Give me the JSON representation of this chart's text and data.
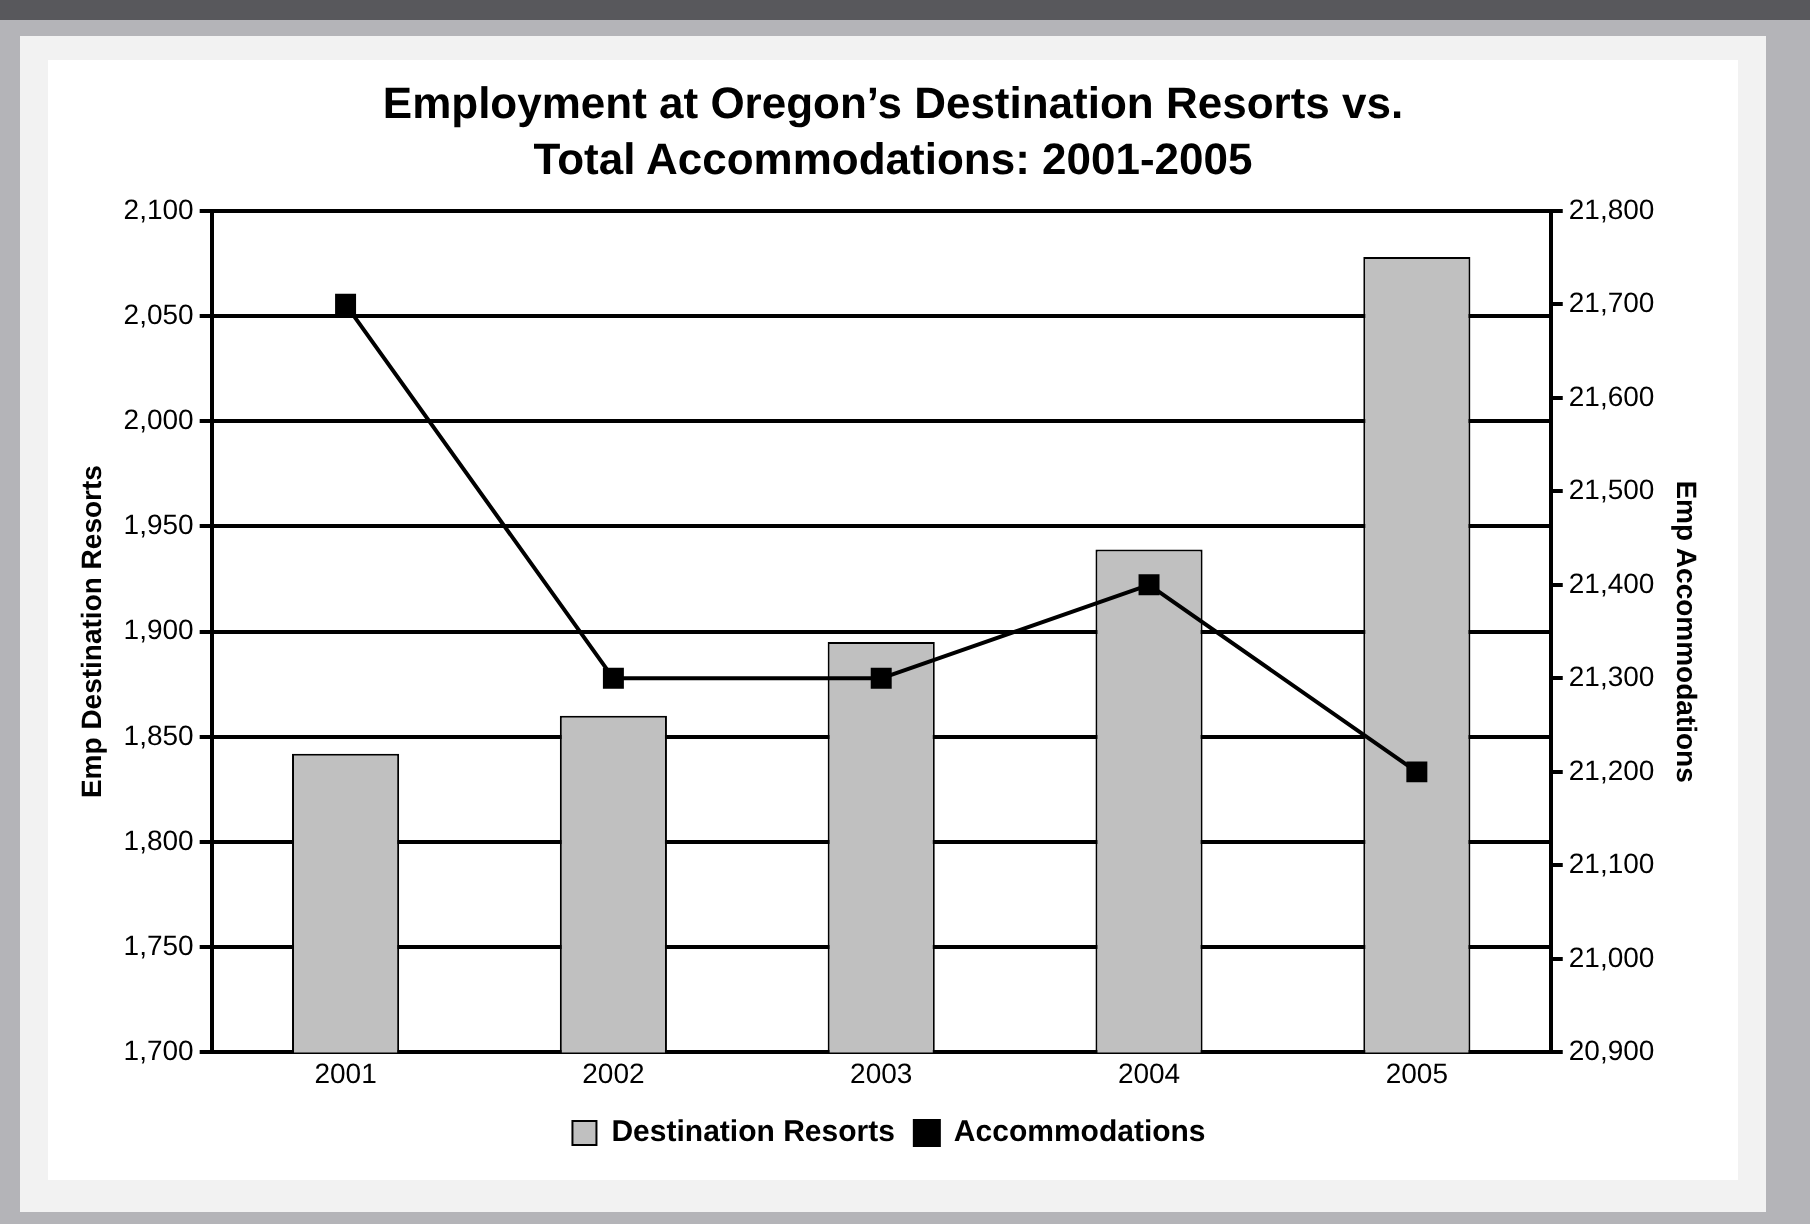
{
  "chart_data": {
    "type": "bar",
    "title": "Employment at Oregon’s Destination Resorts vs. Total Accommodations: 2001-2005",
    "ylabel": "Emp Destination Resorts",
    "y2label": "Emp Accommodations",
    "categories": [
      "2001",
      "2002",
      "2003",
      "2004",
      "2005"
    ],
    "series": [
      {
        "name": "Destination Resorts",
        "color": "#c0c0c0",
        "values": [
          1842,
          1860,
          1895,
          1939,
          2078
        ]
      },
      {
        "name": "Accommodations",
        "type": "line",
        "axis": "y2",
        "color": "#000000",
        "marker": "square",
        "line_style": "solid",
        "values": [
          21700,
          21300,
          21300,
          21400,
          21200
        ]
      }
    ],
    "ylim": [
      1700,
      2100
    ],
    "yticks": [
      {
        "value": 1700,
        "label": "1,700"
      },
      {
        "value": 1750,
        "label": "1,750"
      },
      {
        "value": 1800,
        "label": "1,800"
      },
      {
        "value": 1850,
        "label": "1,850"
      },
      {
        "value": 1900,
        "label": "1,900"
      },
      {
        "value": 1950,
        "label": "1,950"
      },
      {
        "value": 2000,
        "label": "2,000"
      },
      {
        "value": 2050,
        "label": "2,050"
      },
      {
        "value": 2100,
        "label": "2,100"
      }
    ],
    "y2lim": [
      20900,
      21800
    ],
    "y2ticks": [
      {
        "value": 20900,
        "label": "20,900"
      },
      {
        "value": 21000,
        "label": "21,000"
      },
      {
        "value": 21100,
        "label": "21,100"
      },
      {
        "value": 21200,
        "label": "21,200"
      },
      {
        "value": 21300,
        "label": "21,300"
      },
      {
        "value": 21400,
        "label": "21,400"
      },
      {
        "value": 21500,
        "label": "21,500"
      },
      {
        "value": 21600,
        "label": "21,600"
      },
      {
        "value": 21700,
        "label": "21,700"
      },
      {
        "value": 21800,
        "label": "21,800"
      }
    ],
    "grid": "y",
    "legend": "bottom"
  }
}
